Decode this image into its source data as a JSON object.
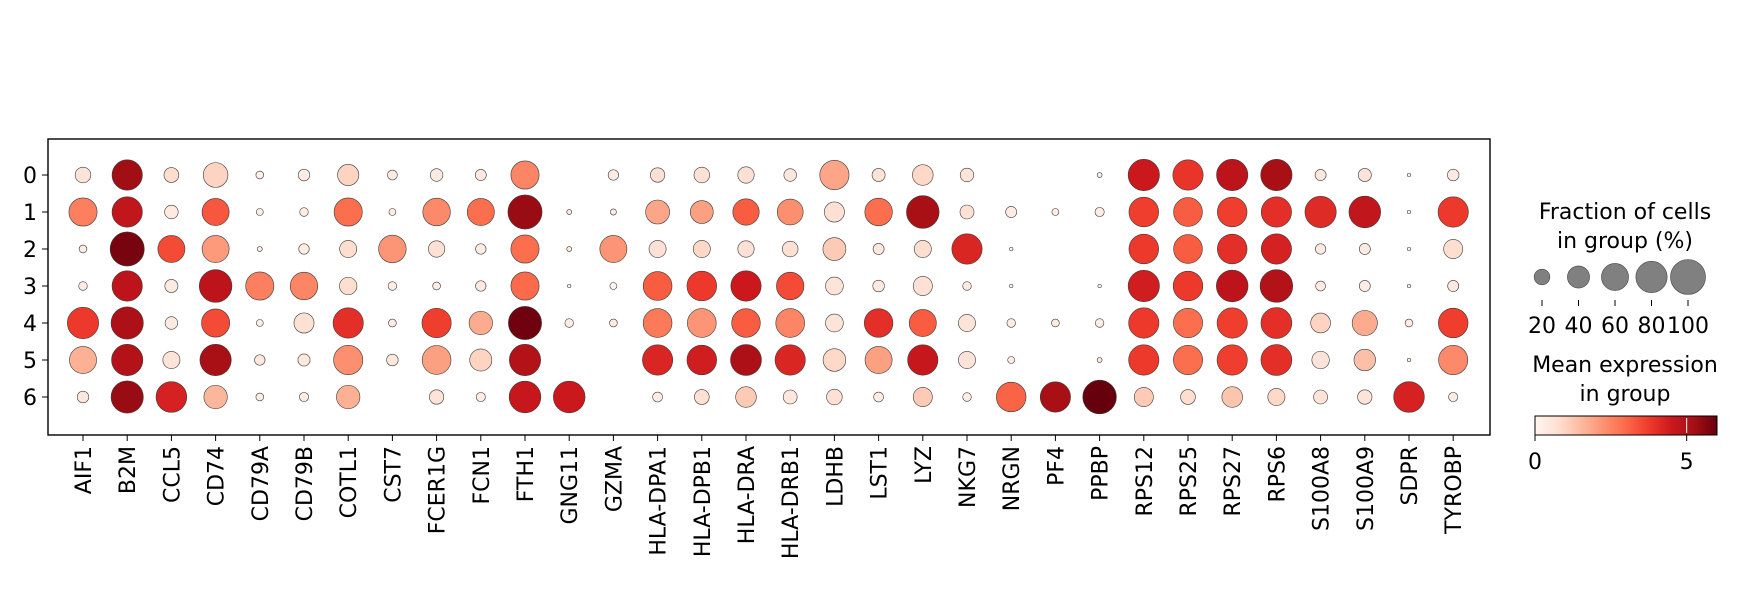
{
  "chart_data": {
    "type": "dotplot",
    "genes": [
      "AIF1",
      "B2M",
      "CCL5",
      "CD74",
      "CD79A",
      "CD79B",
      "COTL1",
      "CST7",
      "FCER1G",
      "FCN1",
      "FTH1",
      "GNG11",
      "GZMA",
      "HLA-DPA1",
      "HLA-DPB1",
      "HLA-DRA",
      "HLA-DRB1",
      "LDHB",
      "LST1",
      "LYZ",
      "NKG7",
      "NRGN",
      "PF4",
      "PPBP",
      "RPS12",
      "RPS25",
      "RPS27",
      "RPS6",
      "S100A8",
      "S100A9",
      "SDPR",
      "TYROBP"
    ],
    "groups": [
      "0",
      "1",
      "2",
      "3",
      "4",
      "5",
      "6"
    ],
    "fraction_pct": [
      [
        20,
        75,
        18,
        50,
        5,
        11,
        37,
        8,
        13,
        10,
        65,
        0,
        9,
        17,
        20,
        22,
        13,
        70,
        14,
        35,
        15,
        0,
        0,
        2,
        80,
        75,
        80,
        80,
        10,
        14,
        1,
        11
      ],
      [
        65,
        75,
        15,
        60,
        4,
        6,
        65,
        4,
        62,
        60,
        95,
        2,
        3,
        47,
        43,
        57,
        55,
        33,
        62,
        87,
        16,
        10,
        4,
        7,
        72,
        68,
        72,
        75,
        80,
        82,
        1,
        75
      ],
      [
        5,
        95,
        60,
        60,
        2,
        9,
        24,
        62,
        22,
        9,
        65,
        2,
        60,
        24,
        24,
        22,
        20,
        43,
        10,
        24,
        75,
        1,
        0,
        0,
        72,
        68,
        72,
        75,
        9,
        10,
        1,
        30
      ],
      [
        6,
        75,
        14,
        87,
        65,
        62,
        25,
        6,
        5,
        9,
        65,
        1,
        4,
        68,
        72,
        75,
        62,
        26,
        11,
        30,
        6,
        1,
        0,
        1,
        80,
        72,
        82,
        87,
        8,
        10,
        1,
        10
      ],
      [
        80,
        85,
        13,
        65,
        4,
        33,
        75,
        5,
        70,
        45,
        90,
        6,
        5,
        68,
        68,
        67,
        68,
        26,
        67,
        60,
        24,
        6,
        5,
        6,
        75,
        70,
        75,
        78,
        32,
        52,
        5,
        72
      ],
      [
        60,
        80,
        24,
        80,
        9,
        12,
        70,
        11,
        68,
        40,
        80,
        0,
        0,
        75,
        72,
        78,
        75,
        42,
        60,
        75,
        24,
        4,
        0,
        2,
        75,
        70,
        75,
        78,
        25,
        38,
        1,
        70
      ],
      [
        11,
        85,
        77,
        45,
        5,
        7,
        45,
        0,
        17,
        7,
        82,
        82,
        0,
        8,
        18,
        35,
        16,
        20,
        8,
        30,
        6,
        72,
        75,
        92,
        30,
        18,
        35,
        24,
        16,
        17,
        77,
        7
      ]
    ],
    "mean_expression": [
      [
        0.6,
        5.3,
        0.8,
        1.0,
        0.2,
        0.3,
        1.0,
        0.4,
        0.4,
        0.4,
        2.5,
        0,
        0.3,
        0.7,
        0.7,
        0.7,
        0.5,
        1.9,
        0.6,
        0.9,
        0.6,
        0,
        0,
        0.2,
        4.5,
        3.9,
        4.8,
        5.2,
        0.5,
        0.6,
        0,
        0.4
      ],
      [
        2.6,
        4.7,
        0.4,
        3.3,
        0.3,
        0.3,
        2.9,
        0.3,
        2.4,
        2.9,
        5.4,
        0.3,
        0.3,
        1.9,
        2.0,
        3.2,
        2.3,
        0.7,
        2.9,
        5.2,
        0.7,
        0.3,
        0.3,
        0.3,
        3.7,
        3.2,
        3.7,
        4.0,
        4.1,
        4.7,
        0,
        3.8
      ],
      [
        0.3,
        5.8,
        3.5,
        2.1,
        0.2,
        0.3,
        0.8,
        2.2,
        0.7,
        0.3,
        2.9,
        0.3,
        2.2,
        0.7,
        0.9,
        0.7,
        0.7,
        1.2,
        0.5,
        0.8,
        4.2,
        0,
        0,
        0,
        3.8,
        3.2,
        4.0,
        4.3,
        0.4,
        0.4,
        0,
        0.8
      ],
      [
        0.3,
        4.8,
        0.4,
        4.8,
        2.6,
        2.5,
        0.8,
        0.3,
        0.3,
        0.4,
        3.0,
        0,
        0,
        3.2,
        3.8,
        4.5,
        3.5,
        0.6,
        0.4,
        0.7,
        0.4,
        0,
        0,
        0,
        4.4,
        3.8,
        4.8,
        5.0,
        0.4,
        0.3,
        0,
        0.4
      ],
      [
        3.8,
        5.1,
        0.4,
        3.5,
        0.3,
        0.7,
        4.0,
        0.3,
        3.7,
        1.8,
        5.9,
        0.3,
        0.3,
        2.7,
        2.2,
        3.2,
        2.5,
        0.6,
        4.0,
        3.2,
        0.6,
        0.3,
        0.3,
        0.3,
        3.8,
        2.9,
        3.7,
        4.0,
        1.0,
        1.8,
        0.3,
        3.7
      ],
      [
        1.7,
        5.0,
        0.6,
        5.2,
        0.5,
        0.5,
        2.3,
        0.5,
        2.0,
        1.0,
        5.0,
        0,
        0,
        4.2,
        4.4,
        5.1,
        4.2,
        0.9,
        2.0,
        4.6,
        0.6,
        0.3,
        0.3,
        0.3,
        3.8,
        2.9,
        3.7,
        4.0,
        0.6,
        1.4,
        0.3,
        2.4
      ],
      [
        0.5,
        5.4,
        4.3,
        1.6,
        0.3,
        0.3,
        1.7,
        0,
        0.6,
        0.3,
        4.6,
        4.5,
        0,
        0.3,
        0.7,
        1.2,
        0.5,
        0.7,
        0.3,
        1.2,
        0.3,
        3.1,
        5.2,
        6.0,
        1.2,
        0.8,
        1.3,
        0.9,
        0.6,
        0.6,
        4.3,
        0.3
      ]
    ],
    "size_legend": {
      "title_line1": "Fraction of cells",
      "title_line2": "in group (%)",
      "values": [
        20,
        40,
        60,
        80,
        100
      ],
      "labels": [
        "20",
        "40",
        "60",
        "80",
        "100"
      ]
    },
    "color_legend": {
      "title_line1": "Mean expression",
      "title_line2": "in group",
      "range": [
        0,
        6
      ],
      "ticks": [
        0,
        5
      ],
      "tick_labels": [
        "0",
        "5"
      ],
      "colormap": "Reds",
      "colors": [
        "#fff5f0",
        "#fee0d2",
        "#fcbba1",
        "#fc9272",
        "#fb6a4a",
        "#ef3b2c",
        "#cb181d",
        "#a50f15",
        "#67000d"
      ]
    }
  }
}
